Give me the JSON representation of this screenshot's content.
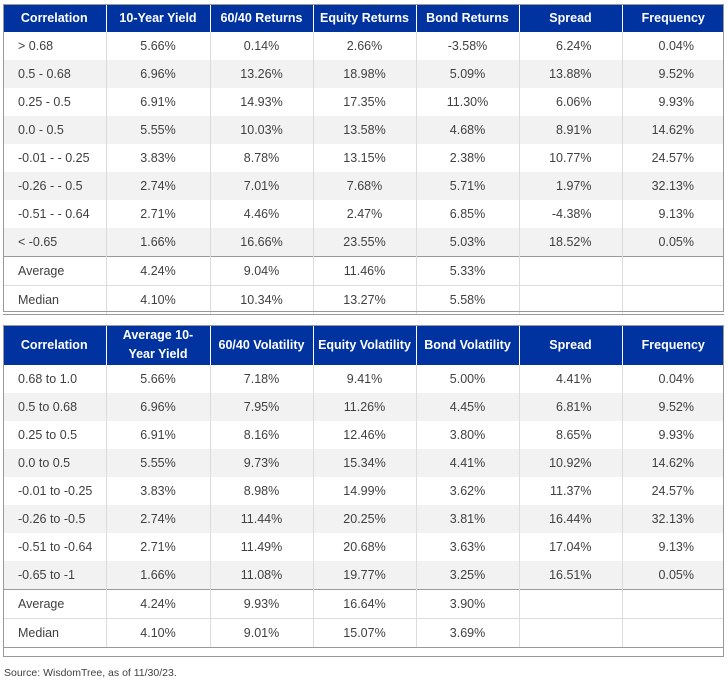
{
  "table1": {
    "headers": [
      "Correlation",
      "10-Year Yield",
      "60/40 Returns",
      "Equity Returns",
      "Bond Returns",
      "Spread",
      "Frequency"
    ],
    "rows": [
      [
        "> 0.68",
        "5.66%",
        "0.14%",
        "2.66%",
        "-3.58%",
        "6.24%",
        "0.04%"
      ],
      [
        "0.5 - 0.68",
        "6.96%",
        "13.26%",
        "18.98%",
        "5.09%",
        "13.88%",
        "9.52%"
      ],
      [
        "0.25 - 0.5",
        "6.91%",
        "14.93%",
        "17.35%",
        "11.30%",
        "6.06%",
        "9.93%"
      ],
      [
        "0.0 - 0.5",
        "5.55%",
        "10.03%",
        "13.58%",
        "4.68%",
        "8.91%",
        "14.62%"
      ],
      [
        "-0.01 - - 0.25",
        "3.83%",
        "8.78%",
        "13.15%",
        "2.38%",
        "10.77%",
        "24.57%"
      ],
      [
        "-0.26 - - 0.5",
        "2.74%",
        "7.01%",
        "7.68%",
        "5.71%",
        "1.97%",
        "32.13%"
      ],
      [
        "-0.51 - - 0.64",
        "2.71%",
        "4.46%",
        "2.47%",
        "6.85%",
        "-4.38%",
        "9.13%"
      ],
      [
        "< -0.65",
        "1.66%",
        "16.66%",
        "23.55%",
        "5.03%",
        "18.52%",
        "0.05%"
      ]
    ],
    "stats": [
      [
        "Average",
        "4.24%",
        "9.04%",
        "11.46%",
        "5.33%",
        "",
        ""
      ],
      [
        "Median",
        "4.10%",
        "10.34%",
        "13.27%",
        "5.58%",
        "",
        ""
      ]
    ]
  },
  "table2": {
    "headers": [
      "Correlation",
      "Average 10-Year Yield",
      "60/40 Volatility",
      "Equity Volatility",
      "Bond Volatility",
      "Spread",
      "Frequency"
    ],
    "rows": [
      [
        "0.68 to 1.0",
        "5.66%",
        "7.18%",
        "9.41%",
        "5.00%",
        "4.41%",
        "0.04%"
      ],
      [
        "0.5 to 0.68",
        "6.96%",
        "7.95%",
        "11.26%",
        "4.45%",
        "6.81%",
        "9.52%"
      ],
      [
        "0.25 to 0.5",
        "6.91%",
        "8.16%",
        "12.46%",
        "3.80%",
        "8.65%",
        "9.93%"
      ],
      [
        "0.0 to 0.5",
        "5.55%",
        "9.73%",
        "15.34%",
        "4.41%",
        "10.92%",
        "14.62%"
      ],
      [
        "-0.01 to -0.25",
        "3.83%",
        "8.98%",
        "14.99%",
        "3.62%",
        "11.37%",
        "24.57%"
      ],
      [
        "-0.26 to -0.5",
        "2.74%",
        "11.44%",
        "20.25%",
        "3.81%",
        "16.44%",
        "32.13%"
      ],
      [
        "-0.51 to -0.64",
        "2.71%",
        "11.49%",
        "20.68%",
        "3.63%",
        "17.04%",
        "9.13%"
      ],
      [
        "-0.65 to -1",
        "1.66%",
        "11.08%",
        "19.77%",
        "3.25%",
        "16.51%",
        "0.05%"
      ]
    ],
    "stats": [
      [
        "Average",
        "4.24%",
        "9.93%",
        "16.64%",
        "3.90%",
        "",
        ""
      ],
      [
        "Median",
        "4.10%",
        "9.01%",
        "15.07%",
        "3.69%",
        "",
        ""
      ]
    ]
  },
  "source": "Source: WisdomTree, as of 11/30/23."
}
